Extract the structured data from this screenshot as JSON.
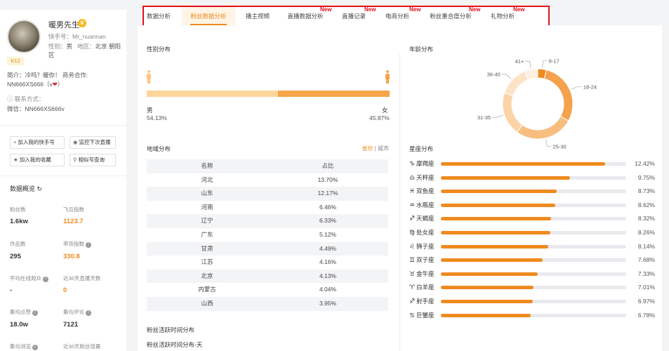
{
  "profile": {
    "name": "暖男先生",
    "kuaishou_id": "快手号：Mr_nuannan",
    "gender_region": {
      "gender_label": "性别：",
      "gender": "男",
      "region_label": "地区：",
      "region": "北京 朝阳区"
    },
    "level": "K12",
    "intro_line1": "简介：冷吗？暖你！ 商务合作:",
    "intro_line2_prefix": "NN666XS666（v",
    "intro_line2_suffix": "）",
    "contact_label": "联系方式：",
    "wechat": "微信：NN666XS666v"
  },
  "actions": [
    {
      "icon": "plus-icon",
      "glyph": "+",
      "label": "加入我的快手号"
    },
    {
      "icon": "eye-icon",
      "glyph": "◉",
      "label": "监控下次直播"
    },
    {
      "icon": "star-icon",
      "glyph": "★",
      "label": "加入我的收藏"
    },
    {
      "icon": "search-icon",
      "glyph": "⚲",
      "label": "相似号查询"
    }
  ],
  "overview": {
    "title": "数据概览",
    "stats": [
      {
        "label": "粉丝数",
        "value": "1.6kw"
      },
      {
        "label": "飞瓜指数",
        "value": "1123.7"
      },
      {
        "label": "作品数",
        "value": "295"
      },
      {
        "label": "带货指数",
        "value": "330.8"
      },
      {
        "label": "平均在线观众",
        "value": "-"
      },
      {
        "label": "近30天直播天数",
        "value": "0"
      },
      {
        "label": "集均点赞",
        "value": "18.0w"
      },
      {
        "label": "集均评论",
        "value": "7121"
      },
      {
        "label": "集均浏览",
        "value": ""
      },
      {
        "label": "近30天粉丝增量",
        "value": ""
      }
    ]
  },
  "tabs": [
    {
      "label": "数据分析",
      "new": ""
    },
    {
      "label": "粉丝数据分析",
      "new": ""
    },
    {
      "label": "播主视频",
      "new": ""
    },
    {
      "label": "直播数据分析",
      "new": "New"
    },
    {
      "label": "直播记录",
      "new": "New"
    },
    {
      "label": "电商分析",
      "new": "New"
    },
    {
      "label": "粉丝重合度分析",
      "new": "New"
    },
    {
      "label": "礼物分析",
      "new": "New"
    }
  ],
  "gender": {
    "title": "性别分布",
    "male_label": "男",
    "female_label": "女",
    "male_pct": "54.13%",
    "female_pct": "45.87%",
    "male_value": 54.13,
    "female_value": 45.87,
    "colors": {
      "male": "#fdd59a",
      "female": "#f5a54a"
    }
  },
  "region": {
    "title": "地域分布",
    "switch_province": "省份",
    "switch_sep": "|",
    "switch_city": "城市",
    "headers": [
      "名称",
      "占比"
    ],
    "rows": [
      [
        "河北",
        "13.70%"
      ],
      [
        "山东",
        "12.17%"
      ],
      [
        "河南",
        "6.46%"
      ],
      [
        "辽宁",
        "6.33%"
      ],
      [
        "广东",
        "5.12%"
      ],
      [
        "甘肃",
        "4.49%"
      ],
      [
        "江苏",
        "4.16%"
      ],
      [
        "北京",
        "4.13%"
      ],
      [
        "内蒙古",
        "4.04%"
      ],
      [
        "山西",
        "3.95%"
      ]
    ]
  },
  "activity": {
    "title": "粉丝活跃时间分布",
    "subtitle": "粉丝活跃时间分布-天"
  },
  "age": {
    "title": "年龄分布",
    "segments": [
      {
        "label": "6-17",
        "value": 4,
        "color": "#ef8a1e"
      },
      {
        "label": "18-24",
        "value": 29,
        "color": "#f4a24d"
      },
      {
        "label": "25-30",
        "value": 27,
        "color": "#f8be80"
      },
      {
        "label": "31-35",
        "value": 20,
        "color": "#fbd3a6"
      },
      {
        "label": "36-40",
        "value": 14,
        "color": "#fde3c6"
      },
      {
        "label": "41+",
        "value": 6,
        "color": "#fff1e2"
      }
    ]
  },
  "zodiac": {
    "title": "星座分布",
    "rows": [
      {
        "sym": "♑",
        "name": "摩羯座",
        "pct": "12.42%",
        "value": 12.42
      },
      {
        "sym": "♎",
        "name": "天秤座",
        "pct": "9.75%",
        "value": 9.75
      },
      {
        "sym": "♓",
        "name": "双鱼座",
        "pct": "8.73%",
        "value": 8.73
      },
      {
        "sym": "♒",
        "name": "水瓶座",
        "pct": "8.62%",
        "value": 8.62
      },
      {
        "sym": "♐",
        "name": "天蝎座",
        "pct": "8.32%",
        "value": 8.32
      },
      {
        "sym": "♍",
        "name": "处女座",
        "pct": "8.26%",
        "value": 8.26
      },
      {
        "sym": "♌",
        "name": "狮子座",
        "pct": "8.14%",
        "value": 8.14
      },
      {
        "sym": "♊",
        "name": "双子座",
        "pct": "7.68%",
        "value": 7.68
      },
      {
        "sym": "♉",
        "name": "金牛座",
        "pct": "7.33%",
        "value": 7.33
      },
      {
        "sym": "♈",
        "name": "白羊座",
        "pct": "7.01%",
        "value": 7.01
      },
      {
        "sym": "♐",
        "name": "射手座",
        "pct": "6.97%",
        "value": 6.97
      },
      {
        "sym": "♋",
        "name": "巨蟹座",
        "pct": "6.78%",
        "value": 6.78
      }
    ],
    "max_value": 14
  }
}
